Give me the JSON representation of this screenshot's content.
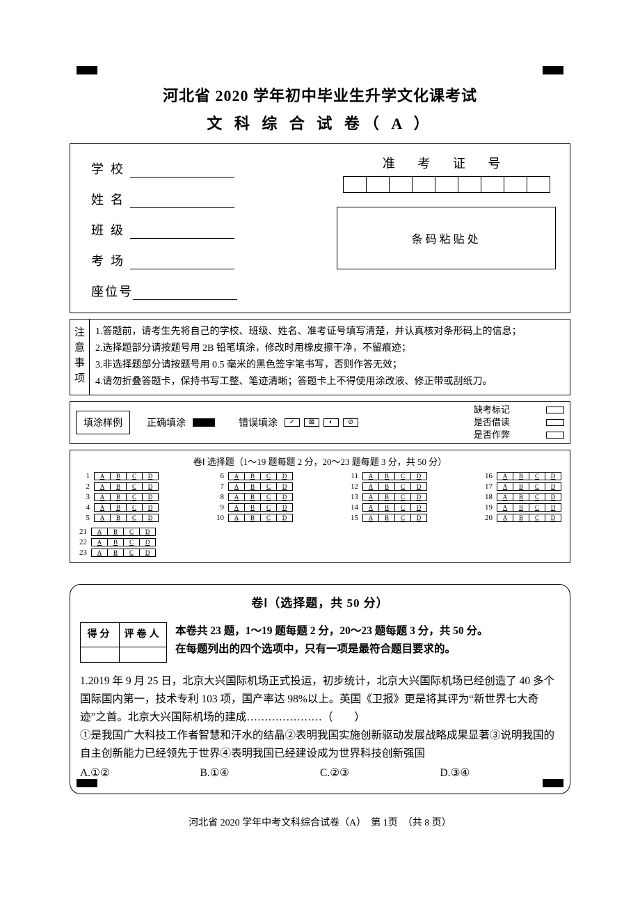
{
  "title1": "河北省 2020 学年初中毕业生升学文化课考试",
  "title2": "文 科 综 合 试 卷（ A ）",
  "student_info": {
    "labels": [
      "学校",
      "姓名",
      "班级",
      "考场",
      "座位号"
    ],
    "zkzh_label": "准 考 证 号",
    "zkzh_box_count": 9,
    "barcode_label": "条码粘贴处"
  },
  "notes": {
    "side_label": "注意事项",
    "items": [
      "1.答题前，请考生先将自己的学校、班级、姓名、准考证号填写清楚，并认真核对条形码上的信息；",
      "2.选择题部分请按题号用 2B 铅笔填涂，修改时用橡皮擦干净，不留痕迹；",
      "3.非选择题部分请按题号用 0.5 毫米的黑色签字笔书写，否则作答无效；",
      "4.请勿折叠答题卡，保持书写工整、笔迹清晰；答题卡上不得使用涂改液、修正带或刮纸刀。"
    ]
  },
  "fill_example": {
    "label": "填涂样例",
    "correct_label": "正确填涂",
    "wrong_label": "错误填涂",
    "wrong_marks": [
      "✓",
      "⊠",
      "◐",
      "⊘"
    ],
    "flags": [
      "缺考标记",
      "是否借读",
      "是否作弊"
    ]
  },
  "bubbles": {
    "title": "卷Ⅰ 选择题（1～19 题每题 2 分，20～23 题每题 3 分，共 50 分）",
    "options": [
      "A",
      "B",
      "C",
      "D"
    ],
    "cols": [
      [
        1,
        2,
        3,
        4,
        5
      ],
      [
        6,
        7,
        8,
        9,
        10
      ],
      [
        11,
        12,
        13,
        14,
        15
      ],
      [
        16,
        17,
        18,
        19,
        20
      ]
    ],
    "extra": [
      21,
      22,
      23
    ]
  },
  "question_card": {
    "title": "卷Ⅰ（选择题，共 50 分）",
    "score_headers": [
      "得分",
      "评卷人"
    ],
    "instructions_l1": "本卷共 23 题，1～19 题每题 2 分，20～23 题每题 3 分，共 50 分。",
    "instructions_l2": "在每题列出的四个选项中，只有一项是最符合题目要求的。",
    "q1_text": "1.2019 年 9 月 25 日，北京大兴国际机场正式投运，初步统计，北京大兴国际机场已经创造了 40 多个国际国内第一，技术专利 103 项，国产率达 98%以上。英国《卫报》更是将其评为“新世界七大奇迹”之首。北京大兴国际机场的建成…………………（　　）",
    "q1_sub": "①是我国广大科技工作者智慧和汗水的结晶②表明我国实施创新驱动发展战略成果显著③说明我国的自主创新能力已经领先于世界④表明我国已经建设成为世界科技创新强国",
    "choices": [
      "A.①②",
      "B.①④",
      "C.②③",
      "D.③④"
    ]
  },
  "footer": "河北省 2020 学年中考文科综合试卷（A）　第 1页　（共 8 页）"
}
